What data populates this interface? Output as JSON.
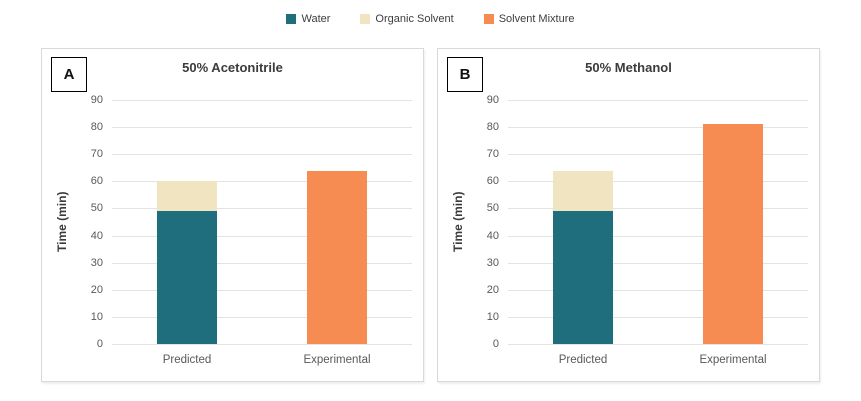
{
  "figure": {
    "background": "#ffffff"
  },
  "legend": {
    "items": [
      {
        "label": "Water",
        "color": "#1f6e7d"
      },
      {
        "label": "Organic Solvent",
        "color": "#f0e5c0"
      },
      {
        "label": "Solvent Mixture",
        "color": "#f68c51"
      }
    ]
  },
  "chart_data": [
    {
      "type": "bar",
      "panel_label": "A",
      "title": "50% Acetonitrile",
      "ylabel": "Time (min)",
      "ylim": [
        0,
        90
      ],
      "yticks": [
        0,
        10,
        20,
        30,
        40,
        50,
        60,
        70,
        80,
        90
      ],
      "grid": true,
      "stacked": true,
      "legend_position": "top-center",
      "categories": [
        "Predicted",
        "Experimental"
      ],
      "series": [
        {
          "name": "Water",
          "color": "#1f6e7d",
          "values": [
            49,
            0
          ]
        },
        {
          "name": "Organic Solvent",
          "color": "#f0e5c0",
          "values": [
            11,
            0
          ]
        },
        {
          "name": "Solvent Mixture",
          "color": "#f68c51",
          "values": [
            0,
            64
          ]
        }
      ]
    },
    {
      "type": "bar",
      "panel_label": "B",
      "title": "50% Methanol",
      "ylabel": "Time (min)",
      "ylim": [
        0,
        90
      ],
      "yticks": [
        0,
        10,
        20,
        30,
        40,
        50,
        60,
        70,
        80,
        90
      ],
      "grid": true,
      "stacked": true,
      "legend_position": "top-center",
      "categories": [
        "Predicted",
        "Experimental"
      ],
      "series": [
        {
          "name": "Water",
          "color": "#1f6e7d",
          "values": [
            49,
            0
          ]
        },
        {
          "name": "Organic Solvent",
          "color": "#f0e5c0",
          "values": [
            15,
            0
          ]
        },
        {
          "name": "Solvent Mixture",
          "color": "#f68c51",
          "values": [
            0,
            81
          ]
        }
      ]
    }
  ]
}
